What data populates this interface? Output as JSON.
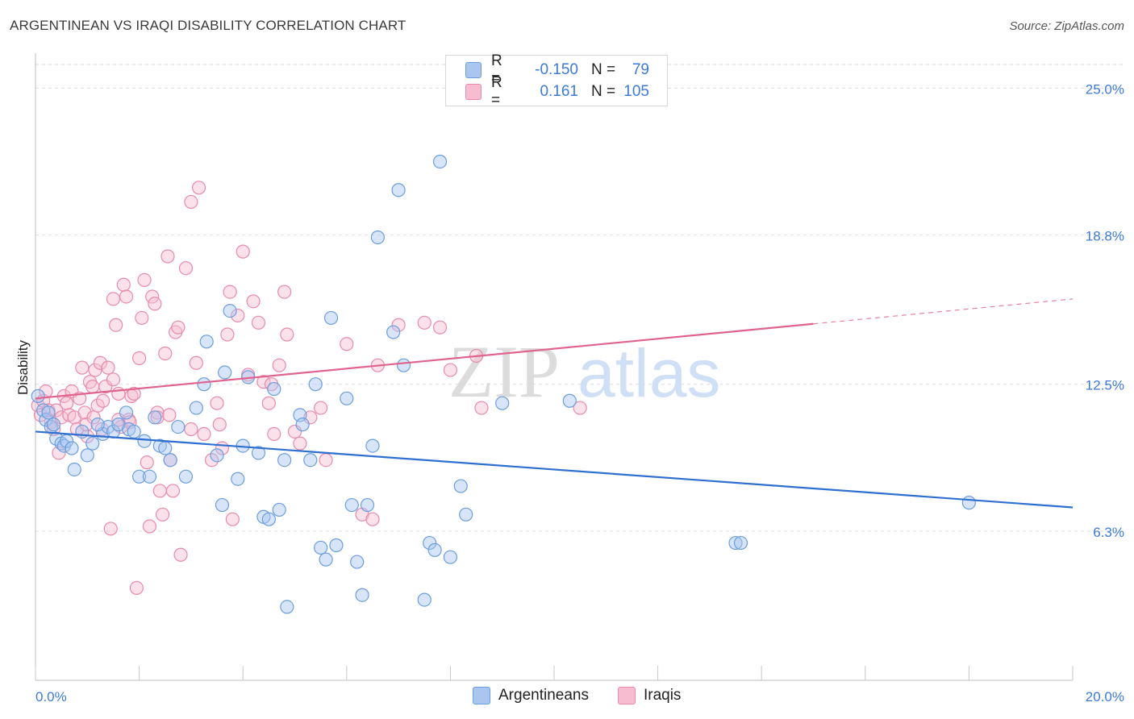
{
  "title": "ARGENTINEAN VS IRAQI DISABILITY CORRELATION CHART",
  "source": "Source: ZipAtlas.com",
  "watermark": "ZIPatlas",
  "legend": {
    "rows": [
      {
        "r_label": "R =",
        "r_value": "-0.150",
        "n_label": "N =",
        "n_value": "79",
        "color": "#a9c6ef",
        "border": "#6a9ee0"
      },
      {
        "r_label": "R =",
        "r_value": "0.161",
        "n_label": "N =",
        "n_value": "105",
        "color": "#f7bcd0",
        "border": "#e98aab"
      }
    ]
  },
  "bottom_legend": [
    {
      "label": "Argentineans",
      "color": "#a9c6ef",
      "border": "#6a9ee0"
    },
    {
      "label": "Iraqis",
      "color": "#f7bcd0",
      "border": "#e98aab"
    }
  ],
  "chart_data": {
    "type": "scatter",
    "title": "ARGENTINEAN VS IRAQI DISABILITY CORRELATION CHART",
    "xlabel": "",
    "ylabel": "Disability",
    "xlim": [
      0,
      20
    ],
    "ylim": [
      0,
      26
    ],
    "x_tick_labels": [
      "0.0%",
      "20.0%"
    ],
    "y_ticks": [
      {
        "value": 6.3,
        "label": "6.3%"
      },
      {
        "value": 12.5,
        "label": "12.5%"
      },
      {
        "value": 18.8,
        "label": "18.8%"
      },
      {
        "value": 25.0,
        "label": "25.0%"
      }
    ],
    "grid": true,
    "legend_position": "top-center",
    "series": [
      {
        "name": "Argentineans",
        "color": "#6a9ee0",
        "fill": "#a9c6ef",
        "trend": {
          "x": [
            0,
            20
          ],
          "y": [
            10.5,
            7.3
          ],
          "dashed_from": null
        },
        "points": [
          [
            0.05,
            12.0
          ],
          [
            0.15,
            11.4
          ],
          [
            0.2,
            11.0
          ],
          [
            0.3,
            10.7
          ],
          [
            0.25,
            11.3
          ],
          [
            0.4,
            10.2
          ],
          [
            0.5,
            10.0
          ],
          [
            0.55,
            9.9
          ],
          [
            0.6,
            10.1
          ],
          [
            0.7,
            9.8
          ],
          [
            0.75,
            8.9
          ],
          [
            0.9,
            10.5
          ],
          [
            1.0,
            9.5
          ],
          [
            1.1,
            10.0
          ],
          [
            1.3,
            10.4
          ],
          [
            1.4,
            10.7
          ],
          [
            1.5,
            10.5
          ],
          [
            1.6,
            10.8
          ],
          [
            1.75,
            11.3
          ],
          [
            1.8,
            10.6
          ],
          [
            1.9,
            10.5
          ],
          [
            2.0,
            8.6
          ],
          [
            2.1,
            10.1
          ],
          [
            2.2,
            8.6
          ],
          [
            2.3,
            11.1
          ],
          [
            2.4,
            9.9
          ],
          [
            2.5,
            9.8
          ],
          [
            2.6,
            9.3
          ],
          [
            2.75,
            10.7
          ],
          [
            2.9,
            8.6
          ],
          [
            3.1,
            11.5
          ],
          [
            3.25,
            12.5
          ],
          [
            3.3,
            14.3
          ],
          [
            3.5,
            9.5
          ],
          [
            3.6,
            7.4
          ],
          [
            3.65,
            13.0
          ],
          [
            3.75,
            15.6
          ],
          [
            3.9,
            8.5
          ],
          [
            4.0,
            9.9
          ],
          [
            4.1,
            12.8
          ],
          [
            4.3,
            9.6
          ],
          [
            4.4,
            6.9
          ],
          [
            4.5,
            6.8
          ],
          [
            4.6,
            12.3
          ],
          [
            4.7,
            7.2
          ],
          [
            4.8,
            9.3
          ],
          [
            4.85,
            3.1
          ],
          [
            5.1,
            11.2
          ],
          [
            5.15,
            10.8
          ],
          [
            5.3,
            9.3
          ],
          [
            5.4,
            12.5
          ],
          [
            5.5,
            5.6
          ],
          [
            5.6,
            5.1
          ],
          [
            5.7,
            15.3
          ],
          [
            5.8,
            5.7
          ],
          [
            6.0,
            11.9
          ],
          [
            6.1,
            7.4
          ],
          [
            6.2,
            5.0
          ],
          [
            6.3,
            3.6
          ],
          [
            6.4,
            7.4
          ],
          [
            6.5,
            9.9
          ],
          [
            6.6,
            18.7
          ],
          [
            6.9,
            14.7
          ],
          [
            7.0,
            20.7
          ],
          [
            7.1,
            13.3
          ],
          [
            7.5,
            3.4
          ],
          [
            7.6,
            5.8
          ],
          [
            7.7,
            5.5
          ],
          [
            7.8,
            21.9
          ],
          [
            8.0,
            5.2
          ],
          [
            8.2,
            8.2
          ],
          [
            8.3,
            7.0
          ],
          [
            9.0,
            11.7
          ],
          [
            10.3,
            11.8
          ],
          [
            13.5,
            5.8
          ],
          [
            13.6,
            5.8
          ],
          [
            18.0,
            7.5
          ],
          [
            0.35,
            10.8
          ],
          [
            1.2,
            10.8
          ]
        ]
      },
      {
        "name": "Iraqis",
        "color": "#e98aab",
        "fill": "#f7bcd0",
        "trend": {
          "x": [
            0,
            20
          ],
          "y": [
            11.9,
            16.1
          ],
          "dashed_from": 15
        },
        "points": [
          [
            0.05,
            11.6
          ],
          [
            0.1,
            11.2
          ],
          [
            0.15,
            11.8
          ],
          [
            0.2,
            12.2
          ],
          [
            0.25,
            11.4
          ],
          [
            0.3,
            10.9
          ],
          [
            0.35,
            10.6
          ],
          [
            0.4,
            11.4
          ],
          [
            0.45,
            9.6
          ],
          [
            0.5,
            11.1
          ],
          [
            0.55,
            12.0
          ],
          [
            0.6,
            11.7
          ],
          [
            0.65,
            11.2
          ],
          [
            0.7,
            12.2
          ],
          [
            0.75,
            11.1
          ],
          [
            0.8,
            10.6
          ],
          [
            0.85,
            11.9
          ],
          [
            0.9,
            13.2
          ],
          [
            0.95,
            11.3
          ],
          [
            1.0,
            10.3
          ],
          [
            1.05,
            12.6
          ],
          [
            1.1,
            12.4
          ],
          [
            1.15,
            13.1
          ],
          [
            1.2,
            11.6
          ],
          [
            1.25,
            13.4
          ],
          [
            1.3,
            11.8
          ],
          [
            1.35,
            12.4
          ],
          [
            1.4,
            13.2
          ],
          [
            1.45,
            6.4
          ],
          [
            1.5,
            16.1
          ],
          [
            1.55,
            15.0
          ],
          [
            1.6,
            12.1
          ],
          [
            1.65,
            10.7
          ],
          [
            1.7,
            16.7
          ],
          [
            1.75,
            16.2
          ],
          [
            1.8,
            11.0
          ],
          [
            1.85,
            12.0
          ],
          [
            1.9,
            12.1
          ],
          [
            1.95,
            3.9
          ],
          [
            2.0,
            13.6
          ],
          [
            2.05,
            15.3
          ],
          [
            2.1,
            16.9
          ],
          [
            2.15,
            9.2
          ],
          [
            2.2,
            6.5
          ],
          [
            2.25,
            16.2
          ],
          [
            2.3,
            15.9
          ],
          [
            2.35,
            11.3
          ],
          [
            2.4,
            8.0
          ],
          [
            2.45,
            7.0
          ],
          [
            2.5,
            13.8
          ],
          [
            2.55,
            17.9
          ],
          [
            2.6,
            9.3
          ],
          [
            2.65,
            8.0
          ],
          [
            2.7,
            14.7
          ],
          [
            2.75,
            14.9
          ],
          [
            2.8,
            5.3
          ],
          [
            2.9,
            17.4
          ],
          [
            3.0,
            20.2
          ],
          [
            3.1,
            13.4
          ],
          [
            3.15,
            20.8
          ],
          [
            3.25,
            10.4
          ],
          [
            3.4,
            9.3
          ],
          [
            3.5,
            11.7
          ],
          [
            3.6,
            9.8
          ],
          [
            3.7,
            14.6
          ],
          [
            3.75,
            16.4
          ],
          [
            3.8,
            6.8
          ],
          [
            3.9,
            15.4
          ],
          [
            4.0,
            18.1
          ],
          [
            4.1,
            12.9
          ],
          [
            4.2,
            16.0
          ],
          [
            4.3,
            15.1
          ],
          [
            4.4,
            12.6
          ],
          [
            4.5,
            11.7
          ],
          [
            4.55,
            12.5
          ],
          [
            4.6,
            10.4
          ],
          [
            4.7,
            13.3
          ],
          [
            4.8,
            16.4
          ],
          [
            4.85,
            14.6
          ],
          [
            5.0,
            10.5
          ],
          [
            5.1,
            10.0
          ],
          [
            5.3,
            11.1
          ],
          [
            5.5,
            11.5
          ],
          [
            5.6,
            9.3
          ],
          [
            6.0,
            14.2
          ],
          [
            6.3,
            7.0
          ],
          [
            6.5,
            6.8
          ],
          [
            6.6,
            13.3
          ],
          [
            7.0,
            15.0
          ],
          [
            7.5,
            15.1
          ],
          [
            7.8,
            14.9
          ],
          [
            8.0,
            13.1
          ],
          [
            8.5,
            13.7
          ],
          [
            8.6,
            11.5
          ],
          [
            10.5,
            11.5
          ],
          [
            1.5,
            12.7
          ],
          [
            1.6,
            11.0
          ],
          [
            2.35,
            11.1
          ],
          [
            3.0,
            10.6
          ],
          [
            0.98,
            10.8
          ],
          [
            1.12,
            11.1
          ],
          [
            1.28,
            10.6
          ],
          [
            1.82,
            10.9
          ],
          [
            2.58,
            11.2
          ],
          [
            3.55,
            10.8
          ]
        ]
      }
    ]
  }
}
